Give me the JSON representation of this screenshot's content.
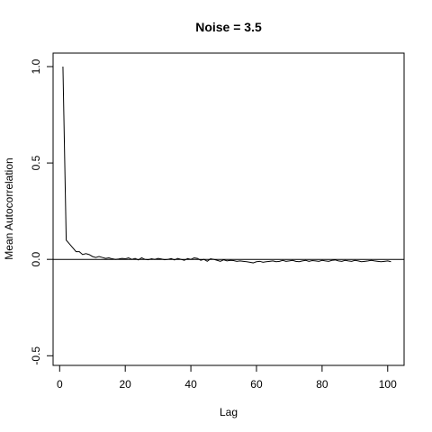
{
  "chart_data": {
    "type": "line",
    "title": "Noise = 3.5",
    "xlabel": "Lag",
    "ylabel": "Mean Autocorrelation",
    "xlim": [
      -2,
      105
    ],
    "ylim": [
      -0.55,
      1.07
    ],
    "xticks": [
      0,
      20,
      40,
      60,
      80,
      100
    ],
    "xtick_labels": [
      "0",
      "20",
      "40",
      "60",
      "80",
      "100"
    ],
    "yticks": [
      -0.5,
      0.0,
      0.5,
      1.0
    ],
    "ytick_labels": [
      "-0.5",
      "0.0",
      "0.5",
      "1.0"
    ],
    "hline": 0,
    "grid": false,
    "series": [
      {
        "x": [
          1,
          2,
          3,
          4,
          5,
          6,
          7,
          8,
          9,
          10,
          11,
          12,
          13,
          14,
          15,
          16,
          17,
          18,
          19,
          20,
          21,
          22,
          23,
          24,
          25,
          26,
          27,
          28,
          29,
          30,
          31,
          32,
          33,
          34,
          35,
          36,
          37,
          38,
          39,
          40,
          41,
          42,
          43,
          44,
          45,
          46,
          47,
          48,
          49,
          50,
          51,
          52,
          53,
          54,
          55,
          56,
          57,
          58,
          59,
          60,
          61,
          62,
          63,
          64,
          65,
          66,
          67,
          68,
          69,
          70,
          71,
          72,
          73,
          74,
          75,
          76,
          77,
          78,
          79,
          80,
          81,
          82,
          83,
          84,
          85,
          86,
          87,
          88,
          89,
          90,
          91,
          92,
          93,
          94,
          95,
          96,
          97,
          98,
          99,
          100,
          101
        ],
        "y": [
          1.0,
          0.1,
          0.08,
          0.06,
          0.04,
          0.04,
          0.025,
          0.03,
          0.025,
          0.015,
          0.01,
          0.015,
          0.01,
          0.005,
          0.008,
          0.003,
          0.0,
          0.002,
          0.005,
          0.003,
          0.008,
          0.0,
          0.005,
          -0.003,
          0.008,
          0.0,
          -0.002,
          0.003,
          0.0,
          0.005,
          0.002,
          -0.002,
          0.0,
          0.004,
          -0.003,
          0.005,
          0.0,
          -0.005,
          0.004,
          0.0,
          0.008,
          0.005,
          -0.005,
          0.0,
          -0.01,
          0.003,
          0.0,
          -0.005,
          -0.01,
          -0.002,
          -0.008,
          -0.005,
          -0.006,
          -0.01,
          -0.008,
          -0.01,
          -0.012,
          -0.015,
          -0.018,
          -0.012,
          -0.01,
          -0.015,
          -0.012,
          -0.01,
          -0.008,
          -0.012,
          -0.01,
          -0.005,
          -0.01,
          -0.008,
          -0.005,
          -0.01,
          -0.012,
          -0.008,
          -0.005,
          -0.01,
          -0.006,
          -0.008,
          -0.01,
          -0.005,
          -0.008,
          -0.01,
          -0.005,
          -0.003,
          -0.008,
          -0.01,
          -0.005,
          -0.008,
          -0.01,
          -0.005,
          -0.008,
          -0.012,
          -0.01,
          -0.008,
          -0.005,
          -0.008,
          -0.01,
          -0.012,
          -0.01,
          -0.008,
          -0.012
        ]
      }
    ]
  }
}
